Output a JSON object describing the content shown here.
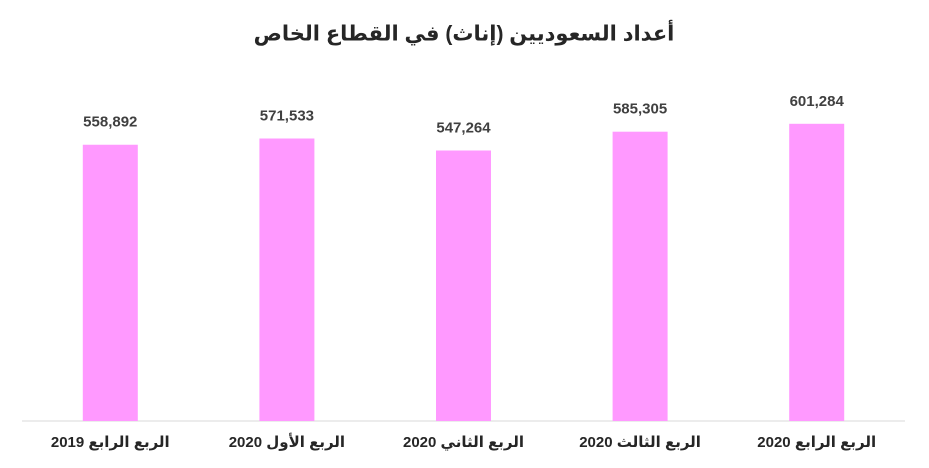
{
  "chart_data": {
    "type": "bar",
    "title": "أعداد السعوديين (إناث) في القطاع الخاص",
    "categories": [
      "الربع الرابع 2019",
      "الربع الأول 2020",
      "الربع الثاني 2020",
      "الربع الثالث 2020",
      "الربع الرابع 2020"
    ],
    "values": [
      558892,
      571533,
      547264,
      585305,
      601284
    ],
    "value_labels": [
      "558,892",
      "571,533",
      "547,264",
      "585,305",
      "601,284"
    ],
    "color": "#ff99ff",
    "ylim": [
      0,
      700000
    ]
  }
}
